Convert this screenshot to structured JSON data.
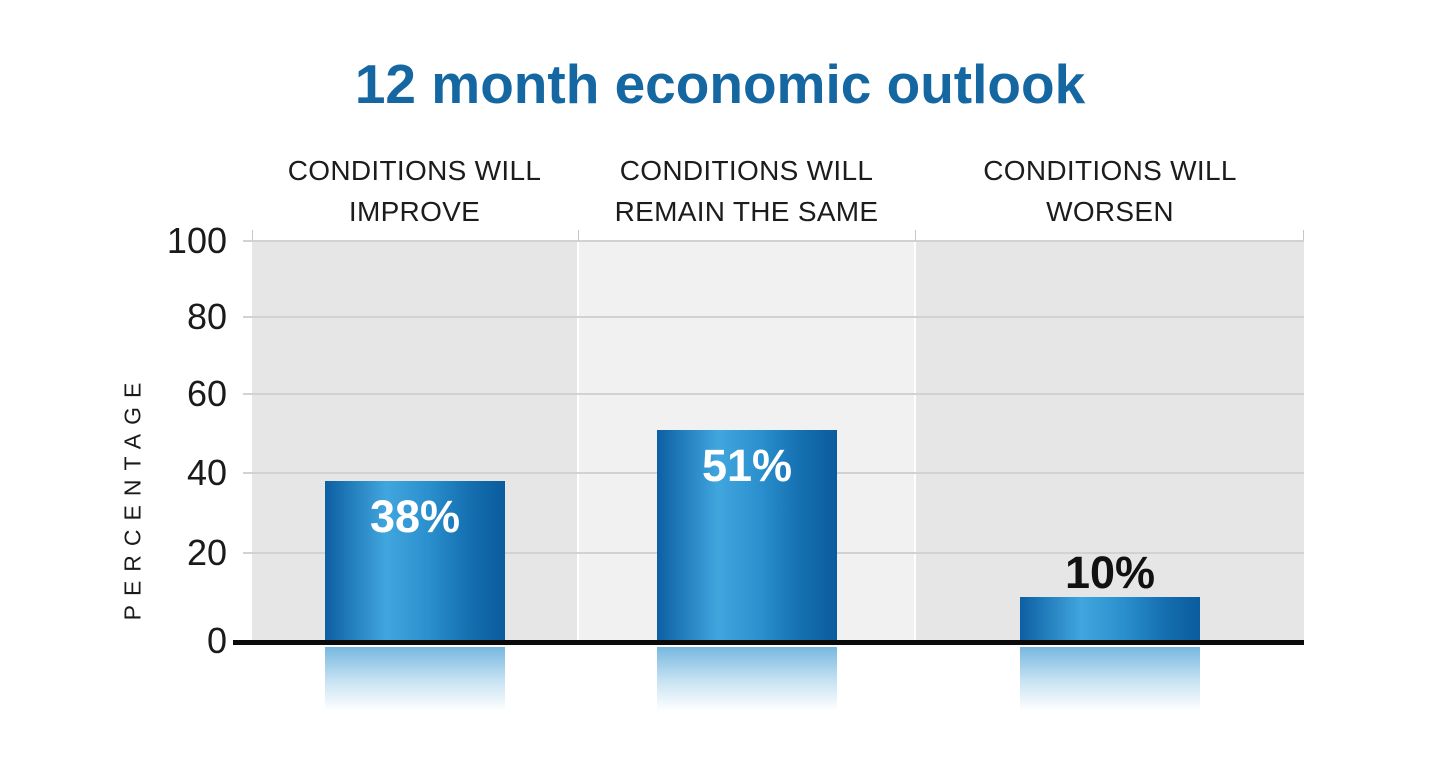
{
  "chart_data": {
    "type": "bar",
    "title": "12 month economic outlook",
    "xlabel": "",
    "ylabel": "PERCENTAGE",
    "ylim": [
      0,
      100
    ],
    "yticks": [
      0,
      20,
      40,
      60,
      80,
      100
    ],
    "grid": true,
    "legend_position": "none",
    "categories": [
      "CONDITIONS WILL IMPROVE",
      "CONDITIONS WILL REMAIN THE SAME",
      "CONDITIONS WILL WORSEN"
    ],
    "category_label_lines": [
      [
        "CONDITIONS WILL",
        "IMPROVE"
      ],
      [
        "CONDITIONS WILL",
        "REMAIN THE SAME"
      ],
      [
        "CONDITIONS WILL",
        "WORSEN"
      ]
    ],
    "values": [
      38,
      51,
      10
    ],
    "value_labels": [
      "38%",
      "51%",
      "10%"
    ]
  },
  "colors": {
    "title_text": "#1567a2",
    "bar_edge_left": "#0d5fa3",
    "bar_highlight": "#41a6de",
    "bar_mid": "#2a8fcd",
    "bar_edge_right": "#0a5c9e",
    "panel_dark": "#e6e6e7",
    "panel_light": "#f1f1f2",
    "gridline": "#d2d2d3",
    "boundary_tick": "#c8c8c8",
    "axis_baseline": "#0a0a0a",
    "tick_text": "#1a1a1a",
    "category_text": "#1c1c1c",
    "value_label_inside": "#ffffff",
    "value_label_outside": "#111111",
    "reflection": "#60acdb",
    "background": "#ffffff"
  }
}
